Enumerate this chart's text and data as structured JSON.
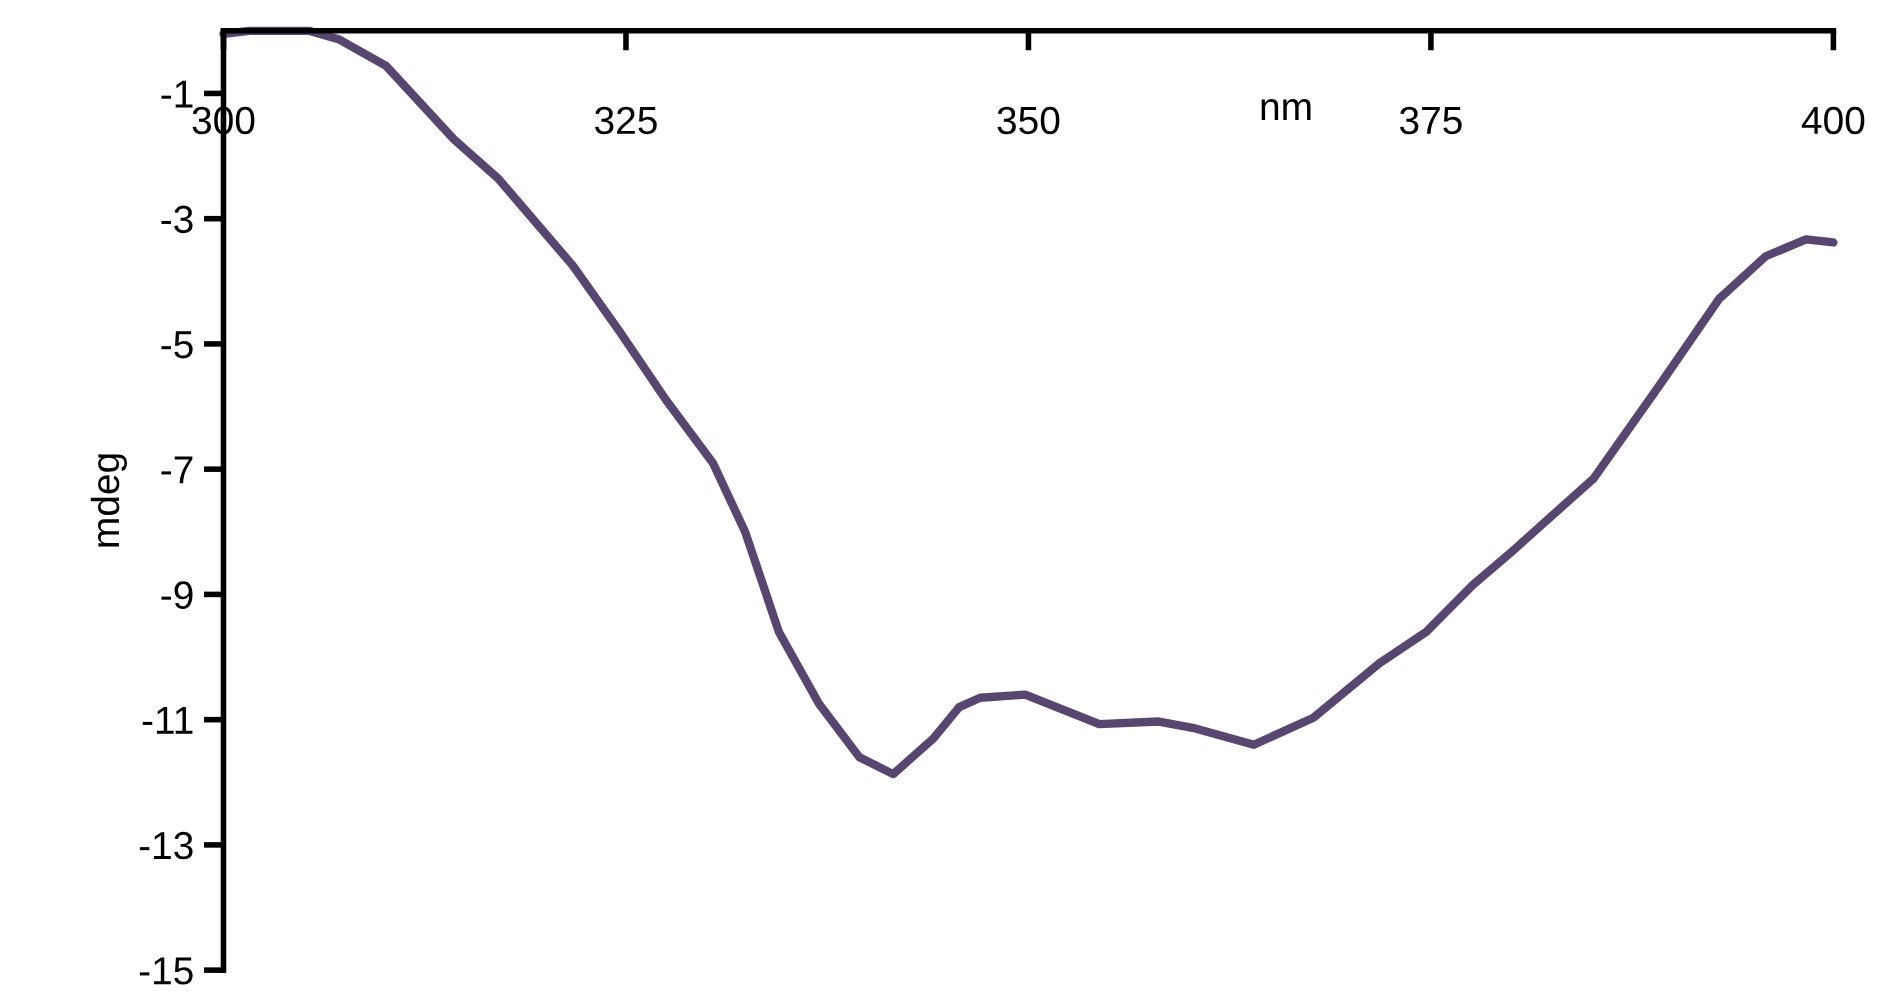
{
  "chart_data": {
    "type": "line",
    "xlabel": "nm",
    "ylabel": "mdeg",
    "xlim": [
      300,
      400
    ],
    "xticks": [
      300,
      325,
      350,
      375,
      400
    ],
    "ylim": [
      -15,
      0
    ],
    "yticks": [
      -1,
      -3,
      -5,
      -7,
      -9,
      -11,
      -13,
      -15
    ],
    "grid": false,
    "marker": "none",
    "line_style": "solid",
    "series": [
      {
        "color": "#574670",
        "x": [
          300,
          301.6,
          305.3,
          307.2,
          310.1,
          314.3,
          317.1,
          321.7,
          324.6,
          327.5,
          330.4,
          332.4,
          334.5,
          337.0,
          339.5,
          341.6,
          344.1,
          345.7,
          347.0,
          349.8,
          354.4,
          358.1,
          360.2,
          364.0,
          367.7,
          371.8,
          374.7,
          377.6,
          380.1,
          385.1,
          389.2,
          392.9,
          395.8,
          398.3,
          400
        ],
        "values": [
          -0.05,
          0,
          0,
          -0.14,
          -0.56,
          -1.73,
          -2.37,
          -3.75,
          -4.8,
          -5.9,
          -6.9,
          -8.0,
          -9.6,
          -10.75,
          -11.6,
          -11.87,
          -11.3,
          -10.8,
          -10.65,
          -10.6,
          -11.07,
          -11.03,
          -11.13,
          -11.4,
          -10.97,
          -10.1,
          -9.6,
          -8.85,
          -8.3,
          -7.15,
          -5.66,
          -4.28,
          -3.6,
          -3.33,
          -3.38
        ]
      }
    ]
  }
}
